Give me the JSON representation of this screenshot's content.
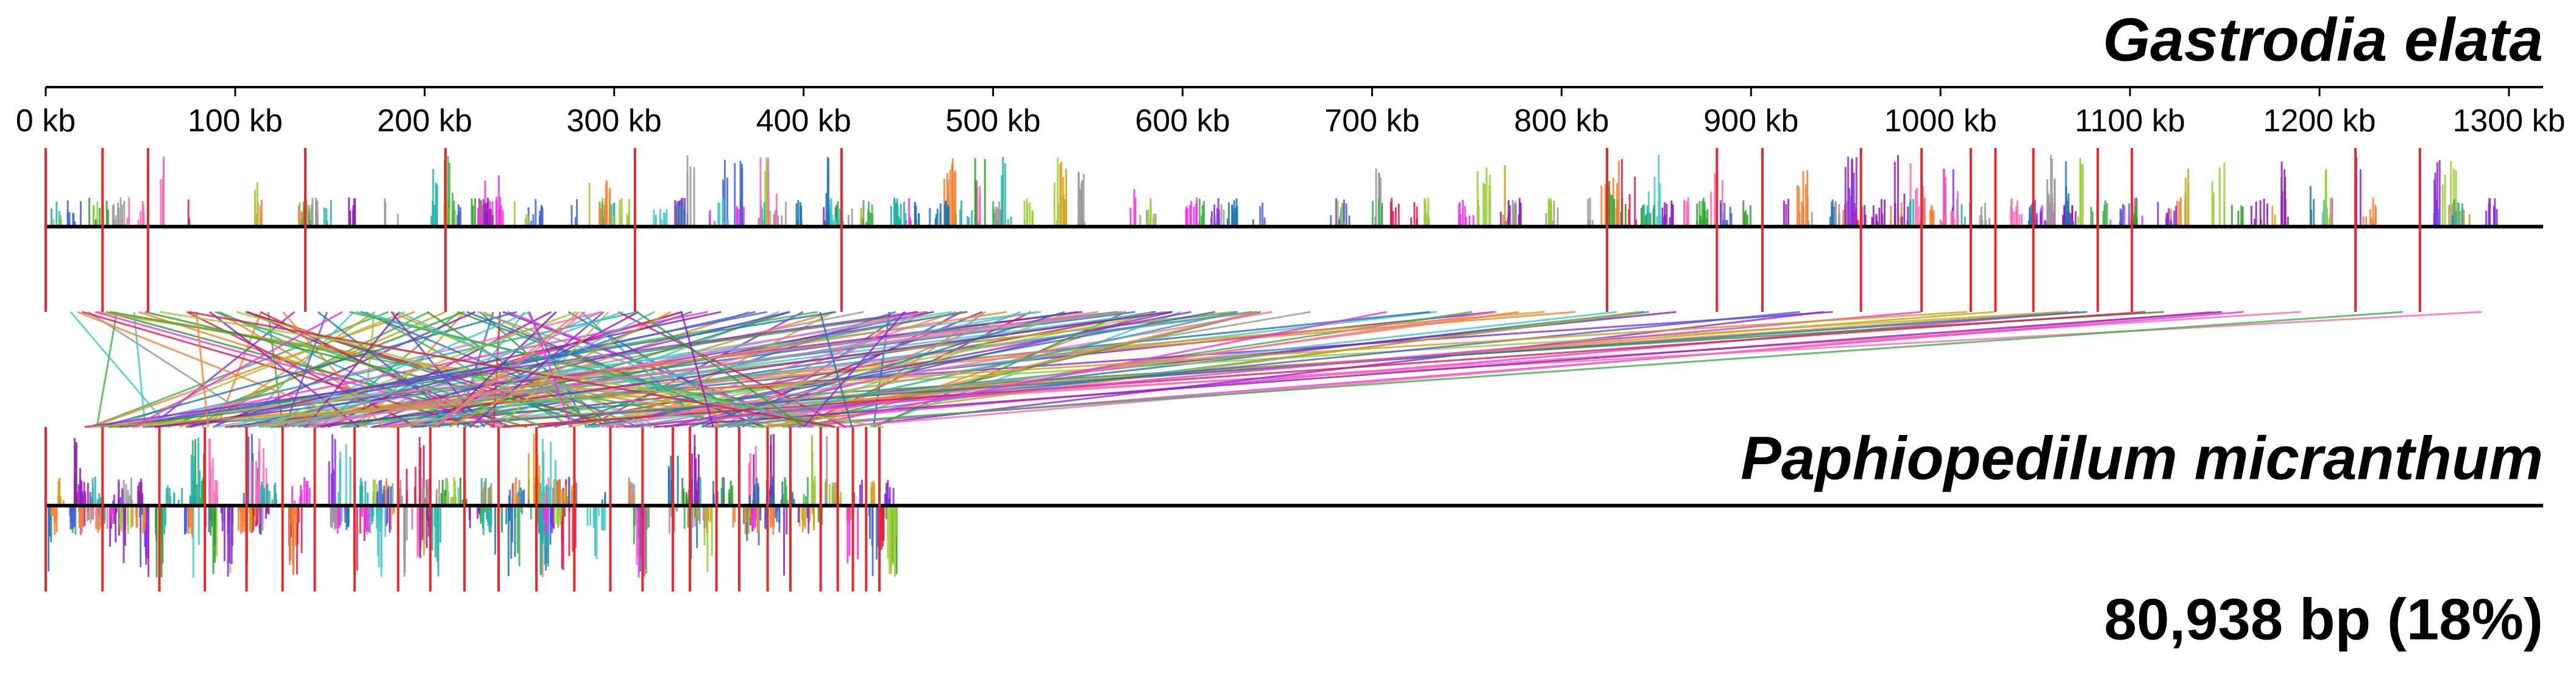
{
  "chart_data": {
    "type": "genome-alignment",
    "xlim": [
      0,
      1300
    ],
    "xticks": [
      {
        "value": 0,
        "label": "0 kb"
      },
      {
        "value": 100,
        "label": "100 kb"
      },
      {
        "value": 200,
        "label": "200 kb"
      },
      {
        "value": 300,
        "label": "300 kb"
      },
      {
        "value": 400,
        "label": "400 kb"
      },
      {
        "value": 500,
        "label": "500 kb"
      },
      {
        "value": 600,
        "label": "600 kb"
      },
      {
        "value": 700,
        "label": "700 kb"
      },
      {
        "value": 800,
        "label": "800 kb"
      },
      {
        "value": 900,
        "label": "900 kb"
      },
      {
        "value": 1000,
        "label": "1000 kb"
      },
      {
        "value": 1100,
        "label": "1100 kb"
      },
      {
        "value": 1200,
        "label": "1200 kb"
      },
      {
        "value": 1300,
        "label": "1300 kb"
      }
    ],
    "genomes": [
      {
        "name": "Gastrodia elata",
        "length_kb": 1300,
        "boundaries": [
          0,
          30,
          54,
          137,
          211,
          311,
          420,
          824,
          882,
          906,
          958,
          990,
          1016,
          1029,
          1049,
          1083,
          1101,
          1219,
          1253
        ]
      },
      {
        "name": "Paphiopedilum micranthum",
        "length_kb": 444,
        "boundaries": [
          0,
          30,
          60,
          84,
          106,
          125,
          142,
          163,
          186,
          203,
          221,
          239,
          259,
          279,
          298,
          315,
          331,
          340,
          354,
          366,
          381,
          393,
          409,
          418,
          426,
          433,
          440
        ]
      }
    ],
    "summary": "80,938 bp (18%)"
  }
}
